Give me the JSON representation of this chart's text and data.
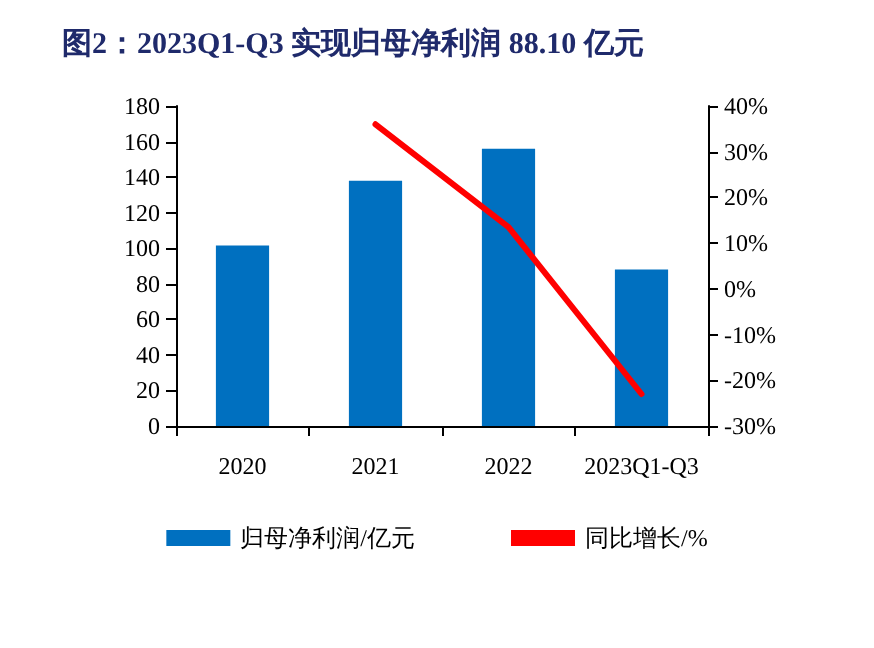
{
  "chart_data": {
    "type": "bar",
    "title": "图2：2023Q1-Q3 实现归母净利润 88.10 亿元",
    "categories": [
      "2020",
      "2021",
      "2022",
      "2023Q1-Q3"
    ],
    "series": [
      {
        "name": "归母净利润/亿元",
        "color": "#0070c0",
        "values": [
          101.5,
          138,
          156,
          88.1
        ]
      },
      {
        "name": "同比增长/%",
        "type": "line",
        "axis": "y2",
        "color": "#ff0000",
        "values": [
          null,
          36,
          13.5,
          -23
        ]
      }
    ],
    "ylim": [
      0,
      180
    ],
    "yticks": [
      0,
      20,
      40,
      60,
      80,
      100,
      120,
      140,
      160,
      180
    ],
    "y2lim": [
      -30,
      40
    ],
    "y2ticks": [
      {
        "value": -30,
        "label": "-30%"
      },
      {
        "value": -20,
        "label": "-20%"
      },
      {
        "value": -10,
        "label": "-10%"
      },
      {
        "value": 0,
        "label": "0%"
      },
      {
        "value": 10,
        "label": "10%"
      },
      {
        "value": 20,
        "label": "20%"
      },
      {
        "value": 30,
        "label": "30%"
      },
      {
        "value": 40,
        "label": "40%"
      }
    ],
    "grid": false,
    "legend": "bottom",
    "marker": "none",
    "line_style": "solid"
  }
}
